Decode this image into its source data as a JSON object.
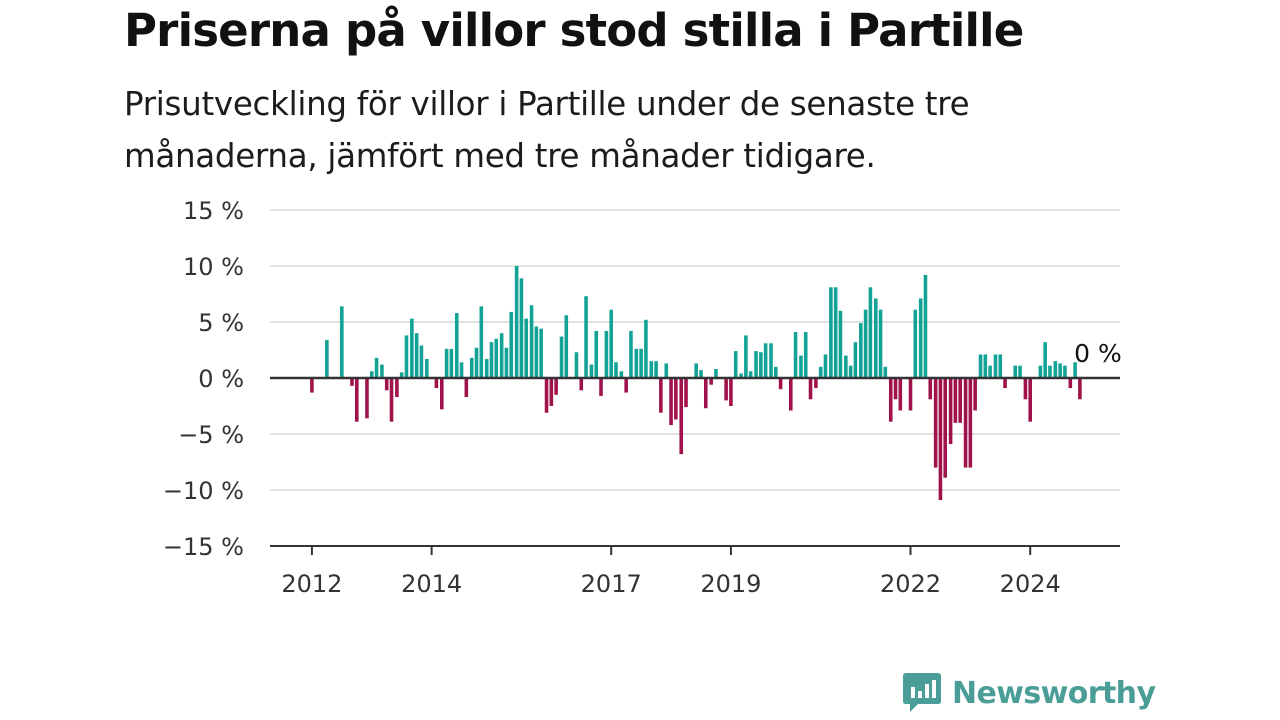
{
  "title": "Priserna på villor stod stilla i Partille",
  "subtitle": "Prisutveckling för villor i Partille under de senaste tre månaderna, jämfört med tre månader tidigare.",
  "brand": {
    "name": "Newsworthy",
    "icon": "newsworthy-logo-icon",
    "color": "#4a9e97"
  },
  "colors": {
    "positive": "#12a396",
    "negative": "#a0134a",
    "grid": "#d9d9d9",
    "axis": "#333333"
  },
  "chart_data": {
    "type": "bar",
    "title": "Priserna på villor stod stilla i Partille",
    "xlabel": "",
    "ylabel": "",
    "ylim": [
      -15,
      15
    ],
    "yticks": [
      15,
      10,
      5,
      0,
      -5,
      -10,
      -15
    ],
    "ytick_labels": [
      "15 %",
      "10 %",
      "5 %",
      "0 %",
      "−5 %",
      "−10 %",
      "−15 %"
    ],
    "xlim": [
      2011.3,
      2025.5
    ],
    "xticks": [
      2012,
      2014,
      2017,
      2019,
      2022,
      2024
    ],
    "xtick_labels": [
      "2012",
      "2014",
      "2017",
      "2019",
      "2022",
      "2024"
    ],
    "grid": true,
    "annotation": {
      "text": "0 %",
      "x": 2024.7,
      "y": 0
    },
    "points": [
      {
        "x": 2012.0,
        "y": -1.3
      },
      {
        "x": 2012.25,
        "y": 3.4
      },
      {
        "x": 2012.5,
        "y": 6.4
      },
      {
        "x": 2012.67,
        "y": -0.7
      },
      {
        "x": 2012.75,
        "y": -3.9
      },
      {
        "x": 2012.92,
        "y": -3.6
      },
      {
        "x": 2013.0,
        "y": 0.6
      },
      {
        "x": 2013.08,
        "y": 1.8
      },
      {
        "x": 2013.17,
        "y": 1.2
      },
      {
        "x": 2013.25,
        "y": -1.1
      },
      {
        "x": 2013.33,
        "y": -3.9
      },
      {
        "x": 2013.42,
        "y": -1.7
      },
      {
        "x": 2013.5,
        "y": 0.5
      },
      {
        "x": 2013.58,
        "y": 3.8
      },
      {
        "x": 2013.67,
        "y": 5.3
      },
      {
        "x": 2013.75,
        "y": 4.0
      },
      {
        "x": 2013.83,
        "y": 2.9
      },
      {
        "x": 2013.92,
        "y": 1.7
      },
      {
        "x": 2014.08,
        "y": -0.9
      },
      {
        "x": 2014.17,
        "y": -2.8
      },
      {
        "x": 2014.25,
        "y": 2.6
      },
      {
        "x": 2014.33,
        "y": 2.6
      },
      {
        "x": 2014.42,
        "y": 5.8
      },
      {
        "x": 2014.5,
        "y": 1.4
      },
      {
        "x": 2014.58,
        "y": -1.7
      },
      {
        "x": 2014.67,
        "y": 1.8
      },
      {
        "x": 2014.75,
        "y": 2.7
      },
      {
        "x": 2014.83,
        "y": 6.4
      },
      {
        "x": 2014.92,
        "y": 1.7
      },
      {
        "x": 2015.0,
        "y": 3.2
      },
      {
        "x": 2015.08,
        "y": 3.5
      },
      {
        "x": 2015.17,
        "y": 4.0
      },
      {
        "x": 2015.25,
        "y": 2.7
      },
      {
        "x": 2015.33,
        "y": 5.9
      },
      {
        "x": 2015.42,
        "y": 10.0
      },
      {
        "x": 2015.5,
        "y": 8.9
      },
      {
        "x": 2015.58,
        "y": 5.3
      },
      {
        "x": 2015.67,
        "y": 6.5
      },
      {
        "x": 2015.75,
        "y": 4.6
      },
      {
        "x": 2015.83,
        "y": 4.4
      },
      {
        "x": 2015.92,
        "y": -3.1
      },
      {
        "x": 2016.0,
        "y": -2.5
      },
      {
        "x": 2016.08,
        "y": -1.5
      },
      {
        "x": 2016.17,
        "y": 3.7
      },
      {
        "x": 2016.25,
        "y": 5.6
      },
      {
        "x": 2016.42,
        "y": 2.3
      },
      {
        "x": 2016.5,
        "y": -1.1
      },
      {
        "x": 2016.58,
        "y": 7.3
      },
      {
        "x": 2016.67,
        "y": 1.2
      },
      {
        "x": 2016.75,
        "y": 4.2
      },
      {
        "x": 2016.83,
        "y": -1.6
      },
      {
        "x": 2016.92,
        "y": 4.2
      },
      {
        "x": 2017.0,
        "y": 6.1
      },
      {
        "x": 2017.08,
        "y": 1.4
      },
      {
        "x": 2017.17,
        "y": 0.6
      },
      {
        "x": 2017.25,
        "y": -1.3
      },
      {
        "x": 2017.33,
        "y": 4.2
      },
      {
        "x": 2017.42,
        "y": 2.6
      },
      {
        "x": 2017.5,
        "y": 2.6
      },
      {
        "x": 2017.58,
        "y": 5.2
      },
      {
        "x": 2017.67,
        "y": 1.5
      },
      {
        "x": 2017.75,
        "y": 1.5
      },
      {
        "x": 2017.83,
        "y": -3.1
      },
      {
        "x": 2017.92,
        "y": 1.3
      },
      {
        "x": 2018.0,
        "y": -4.2
      },
      {
        "x": 2018.08,
        "y": -3.7
      },
      {
        "x": 2018.17,
        "y": -6.8
      },
      {
        "x": 2018.25,
        "y": -2.6
      },
      {
        "x": 2018.42,
        "y": 1.3
      },
      {
        "x": 2018.5,
        "y": 0.7
      },
      {
        "x": 2018.58,
        "y": -2.7
      },
      {
        "x": 2018.67,
        "y": -0.6
      },
      {
        "x": 2018.75,
        "y": 0.8
      },
      {
        "x": 2018.92,
        "y": -2.0
      },
      {
        "x": 2019.0,
        "y": -2.5
      },
      {
        "x": 2019.08,
        "y": 2.4
      },
      {
        "x": 2019.17,
        "y": 0.4
      },
      {
        "x": 2019.25,
        "y": 3.8
      },
      {
        "x": 2019.33,
        "y": 0.6
      },
      {
        "x": 2019.42,
        "y": 2.4
      },
      {
        "x": 2019.5,
        "y": 2.3
      },
      {
        "x": 2019.58,
        "y": 3.1
      },
      {
        "x": 2019.67,
        "y": 3.1
      },
      {
        "x": 2019.75,
        "y": 1.0
      },
      {
        "x": 2019.83,
        "y": -1.0
      },
      {
        "x": 2020.0,
        "y": -2.9
      },
      {
        "x": 2020.08,
        "y": 4.1
      },
      {
        "x": 2020.17,
        "y": 2.0
      },
      {
        "x": 2020.25,
        "y": 4.1
      },
      {
        "x": 2020.33,
        "y": -1.9
      },
      {
        "x": 2020.42,
        "y": -0.9
      },
      {
        "x": 2020.5,
        "y": 1.0
      },
      {
        "x": 2020.58,
        "y": 2.1
      },
      {
        "x": 2020.67,
        "y": 8.1
      },
      {
        "x": 2020.75,
        "y": 8.1
      },
      {
        "x": 2020.83,
        "y": 6.0
      },
      {
        "x": 2020.92,
        "y": 2.0
      },
      {
        "x": 2021.0,
        "y": 1.1
      },
      {
        "x": 2021.08,
        "y": 3.2
      },
      {
        "x": 2021.17,
        "y": 4.9
      },
      {
        "x": 2021.25,
        "y": 6.1
      },
      {
        "x": 2021.33,
        "y": 8.1
      },
      {
        "x": 2021.42,
        "y": 7.1
      },
      {
        "x": 2021.5,
        "y": 6.1
      },
      {
        "x": 2021.58,
        "y": 1.0
      },
      {
        "x": 2021.67,
        "y": -3.9
      },
      {
        "x": 2021.75,
        "y": -1.9
      },
      {
        "x": 2021.83,
        "y": -2.9
      },
      {
        "x": 2022.0,
        "y": -2.9
      },
      {
        "x": 2022.08,
        "y": 6.1
      },
      {
        "x": 2022.17,
        "y": 7.1
      },
      {
        "x": 2022.25,
        "y": 9.2
      },
      {
        "x": 2022.33,
        "y": -1.9
      },
      {
        "x": 2022.42,
        "y": -8.0
      },
      {
        "x": 2022.5,
        "y": -10.9
      },
      {
        "x": 2022.58,
        "y": -8.9
      },
      {
        "x": 2022.67,
        "y": -5.9
      },
      {
        "x": 2022.75,
        "y": -4.0
      },
      {
        "x": 2022.83,
        "y": -4.0
      },
      {
        "x": 2022.92,
        "y": -8.0
      },
      {
        "x": 2023.0,
        "y": -8.0
      },
      {
        "x": 2023.08,
        "y": -2.9
      },
      {
        "x": 2023.17,
        "y": 2.1
      },
      {
        "x": 2023.25,
        "y": 2.1
      },
      {
        "x": 2023.33,
        "y": 1.1
      },
      {
        "x": 2023.42,
        "y": 2.1
      },
      {
        "x": 2023.5,
        "y": 2.1
      },
      {
        "x": 2023.58,
        "y": -0.9
      },
      {
        "x": 2023.75,
        "y": 1.1
      },
      {
        "x": 2023.83,
        "y": 1.1
      },
      {
        "x": 2023.92,
        "y": -1.9
      },
      {
        "x": 2024.0,
        "y": -3.9
      },
      {
        "x": 2024.17,
        "y": 1.1
      },
      {
        "x": 2024.25,
        "y": 3.2
      },
      {
        "x": 2024.33,
        "y": 1.1
      },
      {
        "x": 2024.42,
        "y": 1.5
      },
      {
        "x": 2024.5,
        "y": 1.3
      },
      {
        "x": 2024.58,
        "y": 1.1
      },
      {
        "x": 2024.67,
        "y": -0.9
      },
      {
        "x": 2024.75,
        "y": 1.4
      },
      {
        "x": 2024.83,
        "y": -1.9
      }
    ]
  }
}
